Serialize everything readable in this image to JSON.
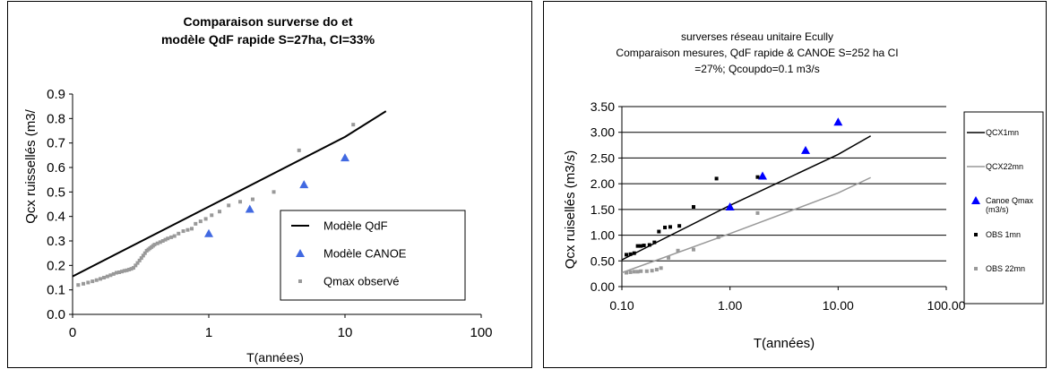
{
  "chart_data": [
    {
      "type": "line",
      "title": "Comparaison surverse do et",
      "subtitle": "modèle QdF rapide S=27ha, CI=33%",
      "xlabel": "T(années)",
      "ylabel": "Qcx  ruissellés (m3/",
      "xscale": "log",
      "xlim": [
        0.1,
        100
      ],
      "ylim": [
        0,
        0.9
      ],
      "xticks": [
        "0",
        "1",
        "10",
        "100"
      ],
      "yticks": [
        "0.0",
        "0.1",
        "0.2",
        "0.3",
        "0.4",
        "0.5",
        "0.6",
        "0.7",
        "0.8",
        "0.9"
      ],
      "grid": false,
      "legend_position": "bottom-right",
      "series": [
        {
          "name": "Modèle QdF",
          "style": "line",
          "color": "#000000",
          "x": [
            0.1,
            1,
            10,
            20
          ],
          "y": [
            0.155,
            0.44,
            0.725,
            0.83
          ]
        },
        {
          "name": "Modèle  CANOE",
          "style": "triangle",
          "color": "#4169E1",
          "x": [
            1,
            2,
            5,
            10
          ],
          "y": [
            0.33,
            0.43,
            0.53,
            0.64
          ]
        },
        {
          "name": "Qmax observé",
          "style": "square",
          "color": "#999999",
          "x": [
            0.11,
            0.12,
            0.13,
            0.14,
            0.15,
            0.16,
            0.17,
            0.18,
            0.19,
            0.2,
            0.21,
            0.22,
            0.23,
            0.24,
            0.25,
            0.26,
            0.27,
            0.28,
            0.29,
            0.3,
            0.31,
            0.32,
            0.33,
            0.34,
            0.35,
            0.36,
            0.37,
            0.38,
            0.39,
            0.4,
            0.42,
            0.44,
            0.46,
            0.48,
            0.5,
            0.53,
            0.56,
            0.6,
            0.65,
            0.7,
            0.75,
            0.8,
            0.87,
            0.95,
            1.05,
            1.2,
            1.4,
            1.7,
            2.1,
            3.0,
            4.6,
            11.5
          ],
          "y": [
            0.12,
            0.125,
            0.13,
            0.135,
            0.14,
            0.145,
            0.15,
            0.155,
            0.16,
            0.165,
            0.17,
            0.172,
            0.175,
            0.178,
            0.18,
            0.183,
            0.186,
            0.19,
            0.2,
            0.21,
            0.22,
            0.23,
            0.24,
            0.25,
            0.26,
            0.265,
            0.27,
            0.275,
            0.28,
            0.285,
            0.29,
            0.295,
            0.3,
            0.305,
            0.31,
            0.315,
            0.32,
            0.33,
            0.34,
            0.345,
            0.35,
            0.37,
            0.38,
            0.39,
            0.405,
            0.42,
            0.445,
            0.46,
            0.47,
            0.5,
            0.67,
            0.775
          ]
        }
      ]
    },
    {
      "type": "line",
      "title": "surverses réseau unitaire Ecully",
      "subtitle": "Comparaison mesures,  QdF rapide & CANOE  S=252 ha CI",
      "subtitle2": "=27%; Qcoupdo=0.1 m3/s",
      "xlabel": "T(années)",
      "ylabel": "Qcx  ruisellés (m3/s)",
      "xscale": "log",
      "xlim": [
        0.1,
        100
      ],
      "ylim": [
        0,
        3.5
      ],
      "xticks": [
        "0.10",
        "1.00",
        "10.00",
        "100.00"
      ],
      "yticks": [
        "0.00",
        "0.50",
        "1.00",
        "1.50",
        "2.00",
        "2.50",
        "3.00",
        "3.50"
      ],
      "grid": true,
      "legend_position": "right",
      "series": [
        {
          "name": "QCX1mn",
          "style": "line",
          "color": "#000000",
          "x": [
            0.1,
            1,
            10,
            20
          ],
          "y": [
            0.52,
            1.58,
            2.57,
            2.93
          ]
        },
        {
          "name": "QCX22mn",
          "style": "line",
          "color": "#999999",
          "x": [
            0.1,
            1,
            10,
            20
          ],
          "y": [
            0.27,
            1.03,
            1.82,
            2.12
          ]
        },
        {
          "name": "Canoe Qmax (m3/s)",
          "style": "triangle",
          "color": "#0000FF",
          "x": [
            1,
            2,
            5,
            10
          ],
          "y": [
            1.55,
            2.15,
            2.65,
            3.2
          ]
        },
        {
          "name": "OBS 1mn",
          "style": "square",
          "color": "#000000",
          "x": [
            0.11,
            0.12,
            0.13,
            0.14,
            0.15,
            0.16,
            0.18,
            0.2,
            0.22,
            0.25,
            0.28,
            0.34,
            0.46,
            0.75,
            1.8
          ],
          "y": [
            0.62,
            0.63,
            0.65,
            0.79,
            0.79,
            0.8,
            0.81,
            0.86,
            1.07,
            1.15,
            1.16,
            1.18,
            1.55,
            2.1,
            2.13
          ]
        },
        {
          "name": "OBS 22mn",
          "style": "square",
          "color": "#999999",
          "x": [
            0.11,
            0.12,
            0.13,
            0.14,
            0.15,
            0.17,
            0.19,
            0.21,
            0.23,
            0.27,
            0.33,
            0.46,
            0.78,
            1.8
          ],
          "y": [
            0.27,
            0.28,
            0.29,
            0.29,
            0.3,
            0.3,
            0.31,
            0.33,
            0.36,
            0.56,
            0.7,
            0.72,
            0.96,
            1.43
          ]
        }
      ]
    }
  ]
}
